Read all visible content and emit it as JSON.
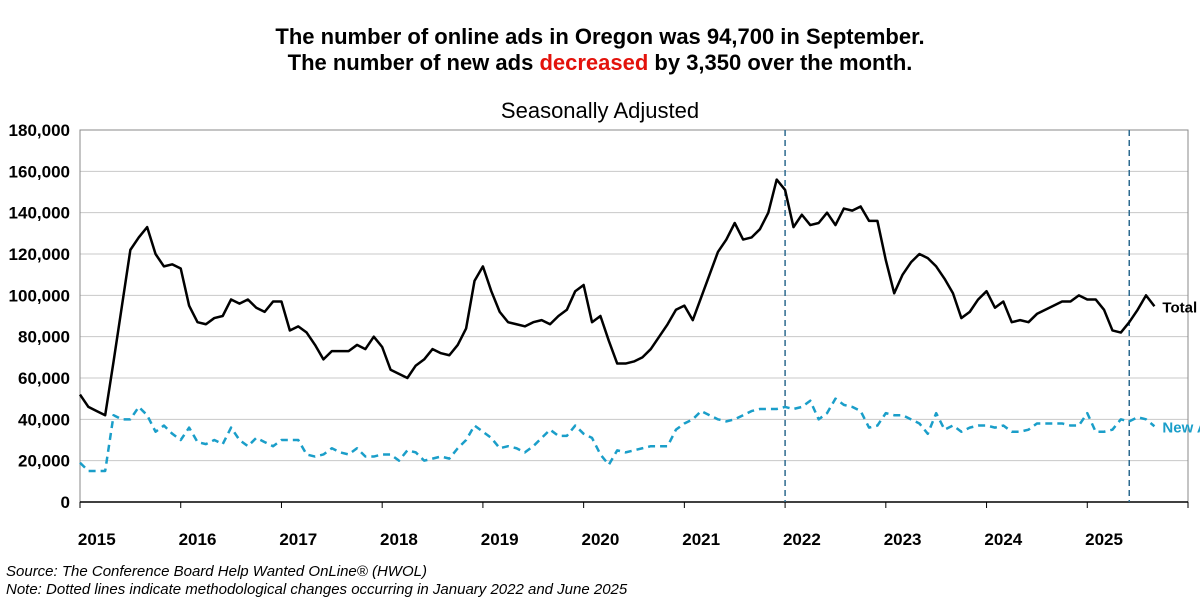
{
  "title": {
    "line1": "The number of online ads in Oregon was 94,700 in September.",
    "line2_prefix": "The number of new ads ",
    "line2_highlight": "decreased",
    "line2_suffix": " by 3,350 over the month."
  },
  "subtitle": "Seasonally Adjusted",
  "footer": {
    "source": "Source: The Conference Board Help Wanted OnLine® (HWOL)",
    "note": "Note: Dotted lines indicate methodological changes occurring in January 2022 and June 2025"
  },
  "colors": {
    "total": "#000000",
    "new": "#1a9ec9",
    "highlight": "#e3120b",
    "annotation_line": "#2d6a8f",
    "grid": "#c8c8c8"
  },
  "chart_data": {
    "type": "line",
    "ylim": [
      0,
      180000
    ],
    "yticks": [
      0,
      20000,
      40000,
      60000,
      80000,
      100000,
      120000,
      140000,
      160000,
      180000
    ],
    "ytick_labels": [
      "0",
      "20,000",
      "40,000",
      "60,000",
      "80,000",
      "100,000",
      "120,000",
      "140,000",
      "160,000",
      "180,000"
    ],
    "x_start": "2015-01",
    "xtick_labels": [
      "2015",
      "2016",
      "2017",
      "2018",
      "2019",
      "2020",
      "2021",
      "2022",
      "2023",
      "2024",
      "2025"
    ],
    "grid": true,
    "vertical_markers": [
      {
        "at": "2022-01"
      },
      {
        "at": "2025-06"
      }
    ],
    "series": [
      {
        "name": "Total Ads",
        "values": [
          52000,
          46000,
          44000,
          42000,
          68000,
          95000,
          122000,
          128000,
          133000,
          120000,
          114000,
          115000,
          113000,
          95000,
          87000,
          86000,
          89000,
          90000,
          98000,
          96000,
          98000,
          94000,
          92000,
          97000,
          97000,
          83000,
          85000,
          82000,
          76000,
          69000,
          73000,
          73000,
          73000,
          76000,
          74000,
          80000,
          75000,
          64000,
          62000,
          60000,
          66000,
          69000,
          74000,
          72000,
          71000,
          76000,
          84000,
          107000,
          114000,
          102000,
          92000,
          87000,
          86000,
          85000,
          87000,
          88000,
          86000,
          90000,
          93000,
          102000,
          105000,
          87000,
          90000,
          78000,
          67000,
          67000,
          68000,
          70000,
          74000,
          80000,
          86000,
          93000,
          95000,
          88000,
          99000,
          110000,
          121000,
          127000,
          135000,
          127000,
          128000,
          132000,
          140000,
          156000,
          151000,
          133000,
          139000,
          134000,
          135000,
          140000,
          134000,
          142000,
          141000,
          143000,
          136000,
          136000,
          117000,
          101000,
          110000,
          116000,
          120000,
          118000,
          114000,
          108000,
          101000,
          89000,
          92000,
          98000,
          102000,
          94000,
          97000,
          87000,
          88000,
          87000,
          91000,
          93000,
          95000,
          97000,
          97000,
          100000,
          98000,
          98000,
          93000,
          83000,
          82000,
          87000,
          93000,
          100000,
          94700
        ]
      },
      {
        "name": "New Ads",
        "values": [
          19000,
          15000,
          15000,
          15000,
          42000,
          40000,
          40000,
          46000,
          42000,
          34000,
          37000,
          33000,
          30000,
          36000,
          29000,
          28000,
          30000,
          28000,
          36000,
          30000,
          27000,
          31000,
          29000,
          27000,
          30000,
          30000,
          30000,
          23000,
          22000,
          23000,
          26000,
          24000,
          23000,
          26000,
          22000,
          22000,
          23000,
          23000,
          20000,
          25000,
          24000,
          20000,
          21000,
          22000,
          21000,
          26000,
          30000,
          37000,
          34000,
          31000,
          26000,
          27000,
          26000,
          24000,
          27000,
          31000,
          35000,
          32000,
          32000,
          37000,
          33000,
          31000,
          23000,
          18000,
          25000,
          24000,
          25000,
          26000,
          27000,
          27000,
          27000,
          35000,
          38000,
          40000,
          44000,
          42000,
          40000,
          39000,
          40000,
          42000,
          44000,
          45000,
          45000,
          45000,
          46000,
          45000,
          46000,
          49000,
          40000,
          43000,
          50000,
          47000,
          46000,
          44000,
          36000,
          37000,
          43000,
          42000,
          42000,
          40000,
          38000,
          33000,
          43000,
          35000,
          37000,
          34000,
          36000,
          37000,
          37000,
          36000,
          37000,
          34000,
          34000,
          35000,
          38000,
          38000,
          38000,
          38000,
          37000,
          37000,
          43000,
          34000,
          34000,
          35000,
          40000,
          39000,
          41000,
          40000,
          36650
        ]
      }
    ]
  }
}
